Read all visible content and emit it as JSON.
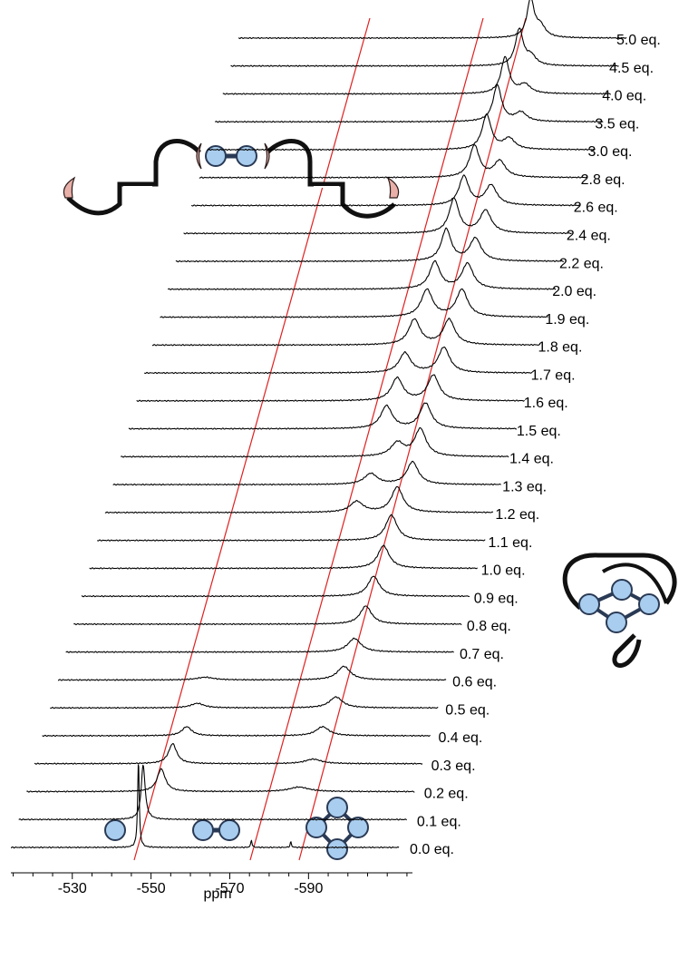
{
  "chart_data": {
    "type": "stacked-spectra",
    "xlabel": "ppm",
    "xlim": [
      -514.4,
      -616.4
    ],
    "xticks": [
      -530,
      -550,
      -570,
      -590
    ],
    "xminorticks": [
      -515,
      -520,
      -525,
      -535,
      -540,
      -545,
      -555,
      -560,
      -565,
      -575,
      -580,
      -585,
      -595,
      -600,
      -605,
      -610,
      -615
    ],
    "color": "#000000",
    "guide_color": "#e02020",
    "series": [
      {
        "name": "0.0 eq.",
        "peaks": [
          {
            "ppm": -546.8,
            "height": 95,
            "fwhm": 0.5
          },
          {
            "ppm": -575.5,
            "height": 8,
            "fwhm": 0.4
          },
          {
            "ppm": -585.5,
            "height": 6,
            "fwhm": 0.4
          }
        ]
      },
      {
        "name": "0.1 eq.",
        "peaks": [
          {
            "ppm": -546.0,
            "height": 60,
            "fwhm": 1.2
          }
        ]
      },
      {
        "name": "0.2 eq.",
        "peaks": [
          {
            "ppm": -548.6,
            "height": 25,
            "fwhm": 2.5
          },
          {
            "ppm": -583.6,
            "height": 5,
            "fwhm": 6
          }
        ]
      },
      {
        "name": "0.3 eq.",
        "peaks": [
          {
            "ppm": -549.5,
            "height": 22,
            "fwhm": 2.5
          },
          {
            "ppm": -585.2,
            "height": 5,
            "fwhm": 5
          }
        ]
      },
      {
        "name": "0.4 eq.",
        "peaks": [
          {
            "ppm": -551.1,
            "height": 10,
            "fwhm": 3
          },
          {
            "ppm": -585.6,
            "height": 10,
            "fwhm": 4
          }
        ]
      },
      {
        "name": "0.5 eq.",
        "peaks": [
          {
            "ppm": -551.8,
            "height": 5,
            "fwhm": 4
          },
          {
            "ppm": -587.0,
            "height": 12,
            "fwhm": 4
          }
        ]
      },
      {
        "name": "0.6 eq.",
        "peaks": [
          {
            "ppm": -551.8,
            "height": 3,
            "fwhm": 5
          },
          {
            "ppm": -587.0,
            "height": 15,
            "fwhm": 4
          }
        ]
      },
      {
        "name": "0.7 eq.",
        "peaks": [
          {
            "ppm": -587.7,
            "height": 15,
            "fwhm": 4
          }
        ]
      },
      {
        "name": "0.8 eq.",
        "peaks": [
          {
            "ppm": -588.6,
            "height": 20,
            "fwhm": 3.5
          }
        ]
      },
      {
        "name": "0.9 eq.",
        "peaks": [
          {
            "ppm": -588.6,
            "height": 22,
            "fwhm": 3.5
          }
        ]
      },
      {
        "name": "1.0 eq.",
        "peaks": [
          {
            "ppm": -589.1,
            "height": 25,
            "fwhm": 3.5
          }
        ]
      },
      {
        "name": "1.1 eq.",
        "peaks": [
          {
            "ppm": -589.1,
            "height": 28,
            "fwhm": 3.5
          }
        ]
      },
      {
        "name": "1.2 eq.",
        "peaks": [
          {
            "ppm": -578.3,
            "height": 12,
            "fwhm": 4
          },
          {
            "ppm": -588.6,
            "height": 28,
            "fwhm": 3.5
          }
        ]
      },
      {
        "name": "1.3 eq.",
        "peaks": [
          {
            "ppm": -579.9,
            "height": 12,
            "fwhm": 4
          },
          {
            "ppm": -590.5,
            "height": 25,
            "fwhm": 3.5
          }
        ]
      },
      {
        "name": "1.4 eq.",
        "peaks": [
          {
            "ppm": -584.7,
            "height": 15,
            "fwhm": 4
          },
          {
            "ppm": -590.5,
            "height": 30,
            "fwhm": 3.5
          }
        ]
      },
      {
        "name": "1.5 eq.",
        "peaks": [
          {
            "ppm": -579.9,
            "height": 25,
            "fwhm": 3.5
          },
          {
            "ppm": -589.8,
            "height": 28,
            "fwhm": 3.5
          }
        ]
      },
      {
        "name": "1.6 eq.",
        "peaks": [
          {
            "ppm": -580.6,
            "height": 25,
            "fwhm": 3.5
          },
          {
            "ppm": -589.8,
            "height": 28,
            "fwhm": 3.5
          }
        ]
      },
      {
        "name": "1.7 eq.",
        "peaks": [
          {
            "ppm": -580.6,
            "height": 22,
            "fwhm": 3.5
          },
          {
            "ppm": -590.5,
            "height": 28,
            "fwhm": 3.5
          }
        ]
      },
      {
        "name": "1.8 eq.",
        "peaks": [
          {
            "ppm": -581.0,
            "height": 28,
            "fwhm": 3.5
          },
          {
            "ppm": -589.8,
            "height": 28,
            "fwhm": 3.5
          }
        ]
      },
      {
        "name": "1.9 eq.",
        "peaks": [
          {
            "ppm": -582.2,
            "height": 30,
            "fwhm": 3.5
          },
          {
            "ppm": -591.1,
            "height": 30,
            "fwhm": 3.5
          }
        ]
      },
      {
        "name": "2.0 eq.",
        "peaks": [
          {
            "ppm": -582.2,
            "height": 30,
            "fwhm": 3.2
          },
          {
            "ppm": -590.5,
            "height": 28,
            "fwhm": 3.5
          }
        ]
      },
      {
        "name": "2.2 eq.",
        "peaks": [
          {
            "ppm": -583.1,
            "height": 35,
            "fwhm": 3
          },
          {
            "ppm": -590.5,
            "height": 25,
            "fwhm": 3.5
          }
        ]
      },
      {
        "name": "2.4 eq.",
        "peaks": [
          {
            "ppm": -583.1,
            "height": 38,
            "fwhm": 3
          },
          {
            "ppm": -591.1,
            "height": 25,
            "fwhm": 3.5
          }
        ]
      },
      {
        "name": "2.6 eq.",
        "peaks": [
          {
            "ppm": -583.6,
            "height": 32,
            "fwhm": 3
          },
          {
            "ppm": -590.5,
            "height": 22,
            "fwhm": 3.5
          }
        ]
      },
      {
        "name": "2.8 eq.",
        "peaks": [
          {
            "ppm": -584.3,
            "height": 35,
            "fwhm": 3
          },
          {
            "ppm": -590.7,
            "height": 18,
            "fwhm": 3.5
          }
        ]
      },
      {
        "name": "3.0 eq.",
        "peaks": [
          {
            "ppm": -585.4,
            "height": 38,
            "fwhm": 2.8
          },
          {
            "ppm": -591.1,
            "height": 12,
            "fwhm": 3.5
          }
        ]
      },
      {
        "name": "3.5 eq.",
        "peaks": [
          {
            "ppm": -586.1,
            "height": 40,
            "fwhm": 2.6
          },
          {
            "ppm": -592.1,
            "height": 10,
            "fwhm": 3.5
          }
        ]
      },
      {
        "name": "4.0 eq.",
        "peaks": [
          {
            "ppm": -586.1,
            "height": 40,
            "fwhm": 2.5
          },
          {
            "ppm": -591.1,
            "height": 10,
            "fwhm": 3.5
          }
        ]
      },
      {
        "name": "4.5 eq.",
        "peaks": [
          {
            "ppm": -587.7,
            "height": 40,
            "fwhm": 2.4
          },
          {
            "ppm": -590.7,
            "height": 10,
            "fwhm": 3
          }
        ]
      },
      {
        "name": "5.0 eq.",
        "peaks": [
          {
            "ppm": -588.6,
            "height": 42,
            "fwhm": 2.2
          },
          {
            "ppm": -591.1,
            "height": 12,
            "fwhm": 3
          }
        ]
      }
    ]
  }
}
